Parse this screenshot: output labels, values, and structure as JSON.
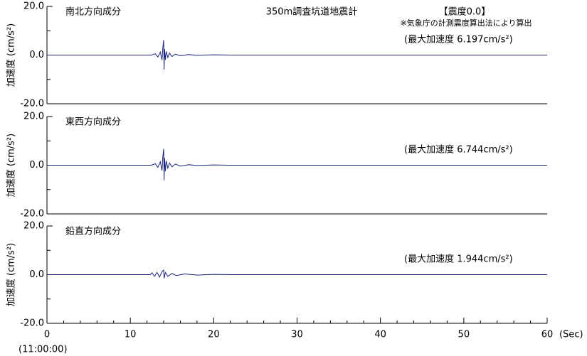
{
  "header": {
    "title": "350m調査坑道地震計",
    "intensity": "【震度0.0】",
    "note": "※気象庁の計測震度算出法により算出"
  },
  "chart_data": [
    {
      "type": "line",
      "title": "南北方向成分",
      "annotation": "(最大加速度 6.197cm/s²)",
      "ylabel": "加速度 (cm/s²)",
      "xlim": [
        0,
        60
      ],
      "ylim": [
        -20,
        20
      ],
      "yticks": [
        {
          "value": 20,
          "label": "20.0"
        },
        {
          "value": 0,
          "label": "0.0"
        },
        {
          "value": -20,
          "label": "-20.0"
        }
      ],
      "yminor": [
        10,
        -10
      ],
      "series": [
        {
          "name": "南北方向成分",
          "color": "#1a237e",
          "x": [
            0,
            12.5,
            13.0,
            13.3,
            13.6,
            13.8,
            13.9,
            14.0,
            14.05,
            14.1,
            14.2,
            14.3,
            14.5,
            14.7,
            15.0,
            15.4,
            16.0,
            17,
            18,
            20,
            22,
            60
          ],
          "values": [
            0,
            0,
            0.5,
            -0.8,
            1.2,
            -2,
            3,
            6.2,
            -6,
            2.5,
            -2,
            1.5,
            -1,
            0.8,
            -0.6,
            0.4,
            -0.3,
            0.2,
            -0.1,
            0.1,
            0,
            0
          ]
        }
      ]
    },
    {
      "type": "line",
      "title": "東西方向成分",
      "annotation": "(最大加速度 6.744cm/s²)",
      "ylabel": "加速度 (cm/s²)",
      "xlim": [
        0,
        60
      ],
      "ylim": [
        -20,
        20
      ],
      "yticks": [
        {
          "value": 20,
          "label": "20.0"
        },
        {
          "value": 0,
          "label": "0.0"
        },
        {
          "value": -20,
          "label": "-20.0"
        }
      ],
      "yminor": [
        10,
        -10
      ],
      "series": [
        {
          "name": "東西方向成分",
          "color": "#1a237e",
          "x": [
            0,
            12.5,
            13.0,
            13.3,
            13.6,
            13.8,
            13.9,
            14.0,
            14.05,
            14.1,
            14.2,
            14.3,
            14.5,
            14.7,
            15.0,
            15.4,
            16.0,
            17,
            18,
            20,
            22,
            60
          ],
          "values": [
            0,
            0,
            0.6,
            -0.9,
            1.4,
            -2.2,
            3.5,
            6.7,
            -6.2,
            3,
            -2.5,
            1.8,
            -1.2,
            0.9,
            -0.7,
            0.5,
            -0.4,
            0.2,
            -0.1,
            0.1,
            0,
            0
          ]
        }
      ]
    },
    {
      "type": "line",
      "title": "鉛直方向成分",
      "annotation": "(最大加速度 1.944cm/s²)",
      "ylabel": "加速度 (cm/s²)",
      "xlim": [
        0,
        60
      ],
      "ylim": [
        -20,
        20
      ],
      "yticks": [
        {
          "value": 20,
          "label": "20.0"
        },
        {
          "value": 0,
          "label": "0.0"
        },
        {
          "value": -20,
          "label": "-20.0"
        }
      ],
      "yminor": [
        10,
        -10
      ],
      "xticks": [
        0,
        10,
        20,
        30,
        40,
        50,
        60
      ],
      "xminor": [
        2,
        4,
        6,
        8,
        12,
        14,
        16,
        18,
        22,
        24,
        26,
        28,
        32,
        34,
        36,
        38,
        42,
        44,
        46,
        48,
        52,
        54,
        56,
        58
      ],
      "xlabel": "(Sec)",
      "xstart_label": "(11:00:00)",
      "series": [
        {
          "name": "鉛直方向成分",
          "color": "#1a237e",
          "x": [
            0,
            12.4,
            12.6,
            12.9,
            13.2,
            13.5,
            13.8,
            14.0,
            14.05,
            14.2,
            14.5,
            15.0,
            15.5,
            16.5,
            18,
            20,
            22,
            60
          ],
          "values": [
            0,
            0,
            0.8,
            -0.7,
            0.9,
            -1.0,
            1.2,
            1.9,
            -1.5,
            0.9,
            -0.7,
            0.5,
            -0.4,
            0.3,
            -0.2,
            0.1,
            0,
            0
          ]
        }
      ]
    }
  ]
}
